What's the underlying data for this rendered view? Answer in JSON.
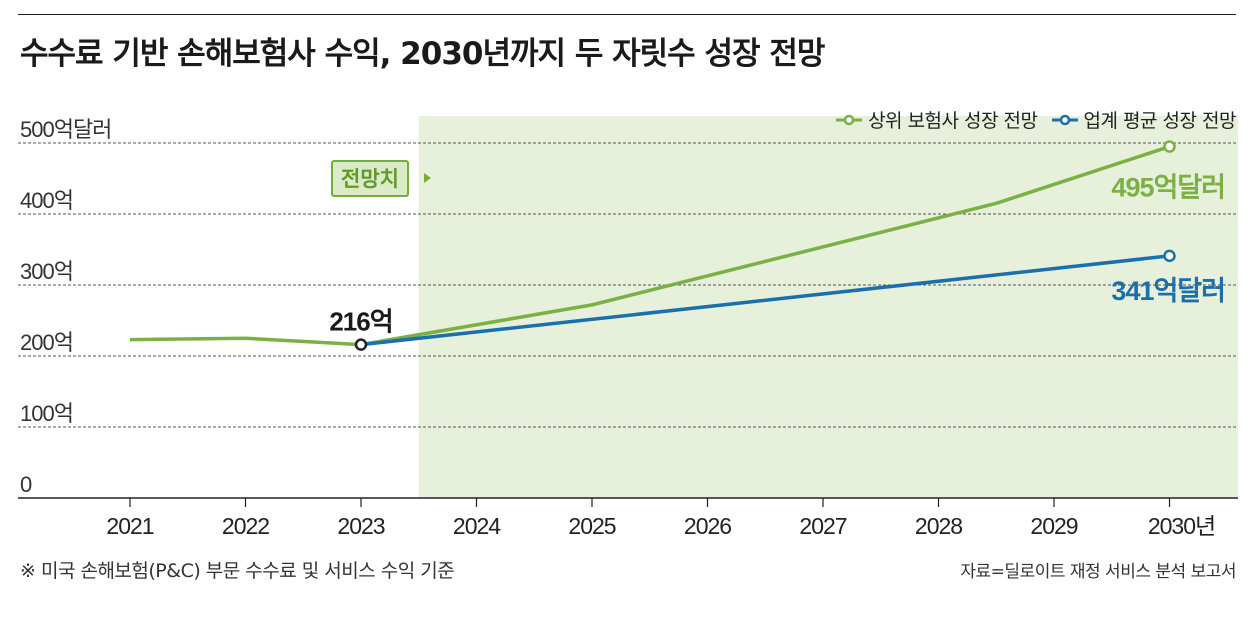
{
  "title": "수수료 기반 손해보험사 수익, 2030년까지 두 자릿수 성장 전망",
  "legend": {
    "top": "상위 보험사 성장 전망",
    "avg": "업계 평균 성장 전망"
  },
  "forecast_label": "전망치",
  "footnote": "※ 미국 손해보험(P&C) 부문 수수료 및 서비스 수익 기준",
  "source": "자료=딜로이트 재정 서비스 분석 보고서",
  "colors": {
    "top": "#7ab142",
    "avg": "#1a6fad",
    "forecast_bg": "#e7f0da",
    "grid": "#555555"
  },
  "chart_data": {
    "type": "line",
    "title": "수수료 기반 손해보험사 수익, 2030년까지 두 자릿수 성장 전망",
    "x": [
      2021,
      2022,
      2023,
      2024,
      2025,
      2026,
      2027,
      2028,
      2029,
      2030
    ],
    "x_tick_labels": [
      "2021",
      "2022",
      "2023",
      "2024",
      "2025",
      "2026",
      "2027",
      "2028",
      "2029",
      "2030년"
    ],
    "y_tick_labels": [
      "0",
      "100억",
      "200억",
      "300억",
      "400억",
      "500억달러"
    ],
    "y_ticks": [
      0,
      100,
      200,
      300,
      400,
      500
    ],
    "ylim": [
      0,
      500
    ],
    "forecast_start": 2023.5,
    "series": [
      {
        "name": "상위 보험사 성장 전망",
        "x": [
          2021,
          2022,
          2023,
          2025,
          2028.5,
          2030
        ],
        "values": [
          223,
          225,
          216,
          272,
          415,
          495
        ]
      },
      {
        "name": "업계 평균 성장 전망",
        "x": [
          2023,
          2030
        ],
        "values": [
          216,
          341
        ]
      }
    ],
    "annotations": [
      {
        "label": "216억",
        "x": 2023,
        "y": 216
      },
      {
        "label": "495억달러",
        "x": 2030,
        "y": 495,
        "series": 0
      },
      {
        "label": "341억달러",
        "x": 2030,
        "y": 341,
        "series": 1
      }
    ],
    "grid": true,
    "legend_position": "top-right"
  }
}
